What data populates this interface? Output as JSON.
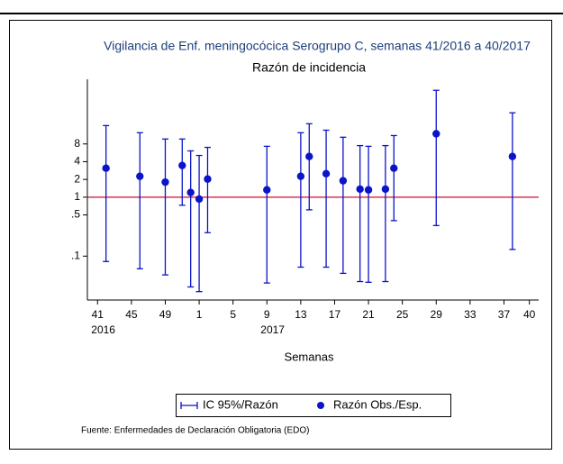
{
  "chart_data": {
    "type": "errorbar",
    "title": "Vigilancia de Enf. meningocócica Serogrupo C, semanas 41/2016 a 40/2017",
    "subtitle": "Razón de incidencia",
    "x_label": "Semanas",
    "source": "Fuente: Enfermedades de Declaración Obligatoria (EDO)",
    "log_y": true,
    "xlim": [
      39.8,
      93.1
    ],
    "xticks": [
      {
        "value": 41,
        "label": "41"
      },
      {
        "value": 45,
        "label": "45"
      },
      {
        "value": 49,
        "label": "49"
      },
      {
        "value": 53,
        "label": "1"
      },
      {
        "value": 57,
        "label": "5"
      },
      {
        "value": 61,
        "label": "9"
      },
      {
        "value": 65,
        "label": "13"
      },
      {
        "value": 69,
        "label": "17"
      },
      {
        "value": 73,
        "label": "21"
      },
      {
        "value": 77,
        "label": "25"
      },
      {
        "value": 81,
        "label": "29"
      },
      {
        "value": 85,
        "label": "33"
      },
      {
        "value": 89,
        "label": "37"
      },
      {
        "value": 92,
        "label": "40"
      }
    ],
    "x_year_labels": [
      {
        "value": 41,
        "label": "2016"
      },
      {
        "value": 61,
        "label": "2017"
      }
    ],
    "ylim": [
      0.018,
      100
    ],
    "yticks": [
      {
        "value": 0.1,
        "label": ".1"
      },
      {
        "value": 0.5,
        "label": ".5"
      },
      1,
      2,
      4,
      8
    ],
    "reference_line": {
      "value": 1,
      "color": "#c8102e"
    },
    "series": [
      {
        "name": "Razón Obs./Esp.",
        "ci_name": "IC 95%/Razón",
        "color": "#0a14c8",
        "x": [
          42,
          46,
          49,
          51,
          52,
          53,
          54,
          61,
          65,
          66,
          68,
          70,
          72,
          73,
          75,
          76,
          81,
          90
        ],
        "values": [
          3.1,
          2.26,
          1.8,
          3.45,
          1.2,
          0.93,
          2.03,
          1.33,
          2.26,
          4.9,
          2.5,
          1.9,
          1.37,
          1.33,
          1.37,
          3.1,
          11.9,
          4.9
        ],
        "upper": [
          16.4,
          12.4,
          9.7,
          9.7,
          6.1,
          5.1,
          7.0,
          7.3,
          12.4,
          17.6,
          13.7,
          10.4,
          7.5,
          7.3,
          7.5,
          11.1,
          65,
          27
        ],
        "lower": [
          0.081,
          0.061,
          0.048,
          0.73,
          0.03,
          0.025,
          0.25,
          0.035,
          0.065,
          0.61,
          0.065,
          0.051,
          0.037,
          0.036,
          0.037,
          0.4,
          0.33,
          0.13
        ]
      }
    ]
  }
}
